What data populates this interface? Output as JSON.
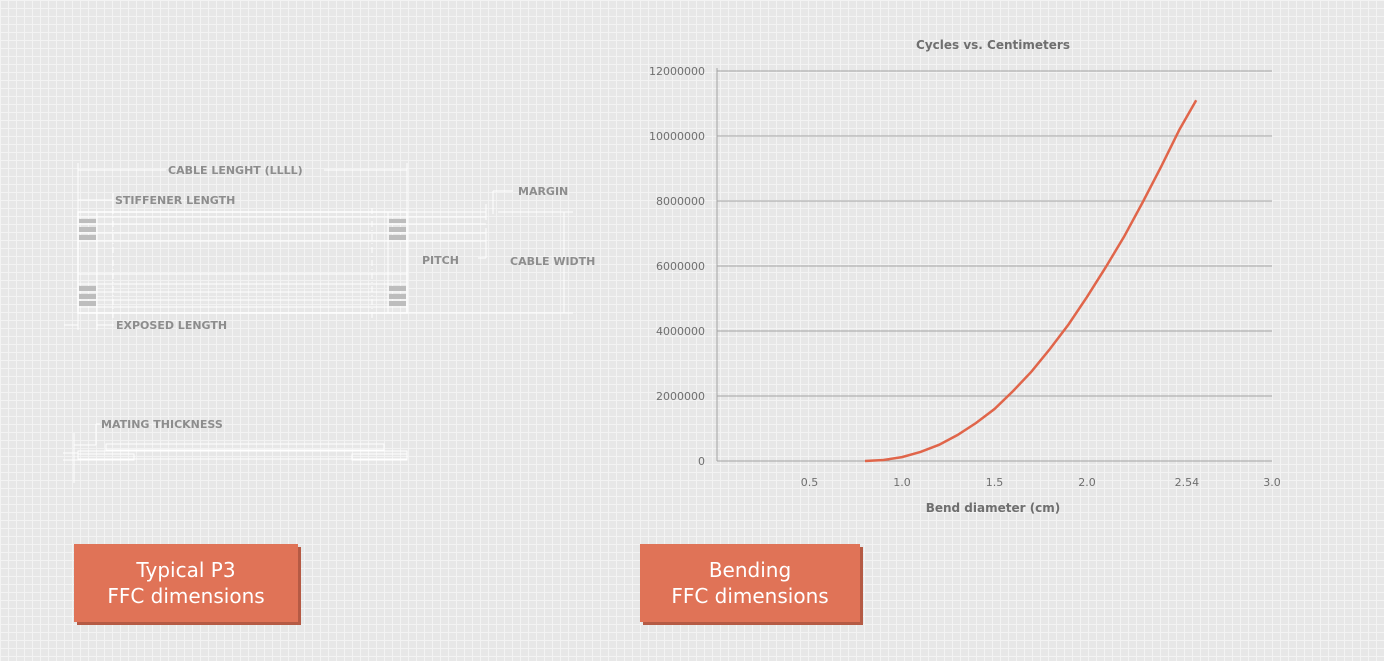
{
  "diagram": {
    "labels": {
      "cable_length": "CABLE LENGHT (LLLL)",
      "stiffener_length": "STIFFENER LENGTH",
      "margin": "MARGIN",
      "pitch": "PITCH",
      "cable_width": "CABLE WIDTH",
      "exposed_length": "EXPOSED LENGTH",
      "mating_thickness": "MATING THICKNESS"
    }
  },
  "badges": {
    "left": {
      "line1": "Typical P3",
      "line2": "FFC dimensions"
    },
    "right": {
      "line1": "Bending",
      "line2": "FFC dimensions"
    }
  },
  "colors": {
    "curve": "#e0654a",
    "badge": "#e07357",
    "badge_shadow": "#b55a44",
    "background": "#e7e7e7"
  },
  "chart_data": {
    "type": "line",
    "title": "Cycles vs. Centimeters",
    "xlabel": "Bend diameter (cm)",
    "ylabel": "",
    "xlim": [
      0,
      3.0
    ],
    "ylim": [
      0,
      12000000
    ],
    "x_ticks": [
      "0.5",
      "1.0",
      "1.5",
      "2.0",
      "2.54",
      "3.0"
    ],
    "x_tick_values": [
      0.5,
      1.0,
      1.5,
      2.0,
      2.54,
      3.0
    ],
    "y_ticks": [
      "0",
      "2000000",
      "4000000",
      "6000000",
      "8000000",
      "10000000",
      "12000000"
    ],
    "y_tick_values": [
      0,
      2000000,
      4000000,
      6000000,
      8000000,
      10000000,
      12000000
    ],
    "grid": "horizontal",
    "series": [
      {
        "x": [
          0.8,
          0.9,
          1.0,
          1.1,
          1.2,
          1.3,
          1.4,
          1.5,
          1.6,
          1.7,
          1.8,
          1.9,
          2.0,
          2.1,
          2.2,
          2.3,
          2.4,
          2.5,
          2.59
        ],
        "values": [
          0,
          30000,
          120000,
          280000,
          500000,
          800000,
          1170000,
          1600000,
          2150000,
          2750000,
          3450000,
          4200000,
          5050000,
          5950000,
          6900000,
          7950000,
          9050000,
          10200000,
          11100000
        ]
      }
    ]
  }
}
